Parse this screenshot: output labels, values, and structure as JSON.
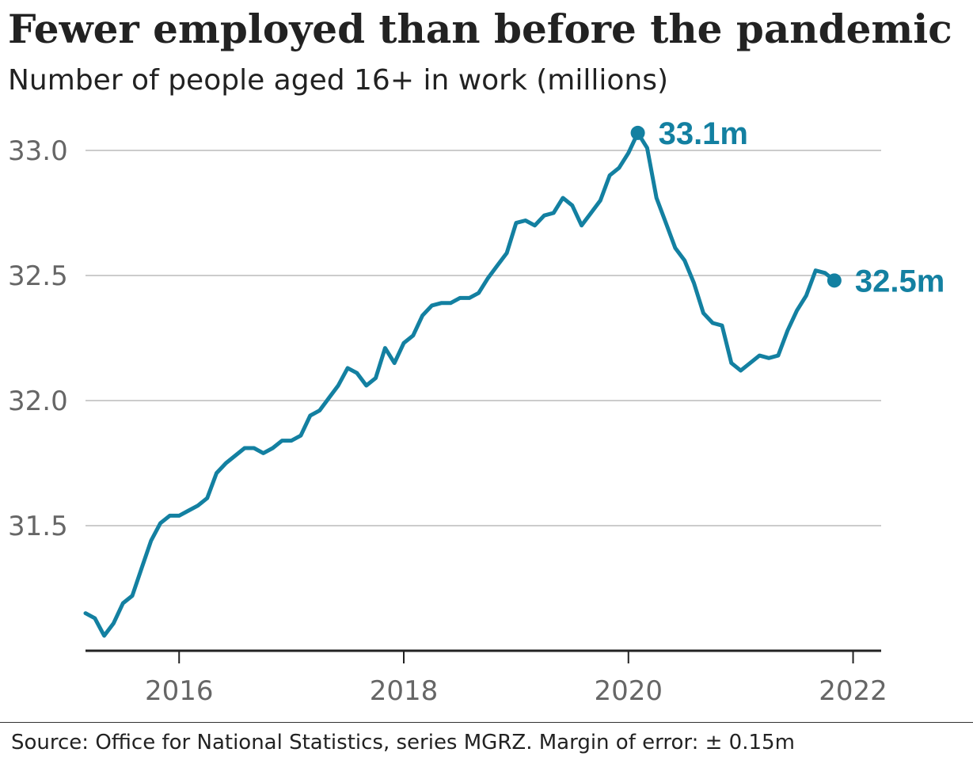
{
  "title": "Fewer employed than before the pandemic",
  "subtitle": "Number of people aged 16+ in work (millions)",
  "source": "Source: Office for National Statistics, series MGRZ. Margin of error: ± 0.15m",
  "colors": {
    "line": "#1380a1",
    "grid": "#cccccc",
    "axis": "#222222",
    "tick_text": "#666666",
    "text": "#222222"
  },
  "chart_data": {
    "type": "line",
    "title": "Fewer employed than before the pandemic",
    "subtitle": "Number of people aged 16+ in work (millions)",
    "xlabel": "",
    "ylabel": "",
    "xlim": [
      "2015-03",
      "2022-04"
    ],
    "ylim": [
      31.0,
      33.1
    ],
    "y_ticks": [
      31.5,
      32.0,
      32.5,
      33.0
    ],
    "y_tick_labels": [
      "31.5",
      "32.0",
      "32.5",
      "33.0"
    ],
    "x_ticks": [
      "2016-01",
      "2018-01",
      "2020-01",
      "2022-01"
    ],
    "x_tick_labels": [
      "2016",
      "2018",
      "2020",
      "2022"
    ],
    "grid": "horizontal",
    "series": [
      {
        "name": "",
        "x": [
          "2015-03",
          "2015-04",
          "2015-05",
          "2015-06",
          "2015-07",
          "2015-08",
          "2015-09",
          "2015-10",
          "2015-11",
          "2015-12",
          "2016-01",
          "2016-02",
          "2016-03",
          "2016-04",
          "2016-05",
          "2016-06",
          "2016-07",
          "2016-08",
          "2016-09",
          "2016-10",
          "2016-11",
          "2016-12",
          "2017-01",
          "2017-02",
          "2017-03",
          "2017-04",
          "2017-05",
          "2017-06",
          "2017-07",
          "2017-08",
          "2017-09",
          "2017-10",
          "2017-11",
          "2017-12",
          "2018-01",
          "2018-02",
          "2018-03",
          "2018-04",
          "2018-05",
          "2018-06",
          "2018-07",
          "2018-08",
          "2018-09",
          "2018-10",
          "2018-11",
          "2018-12",
          "2019-01",
          "2019-02",
          "2019-03",
          "2019-04",
          "2019-05",
          "2019-06",
          "2019-07",
          "2019-08",
          "2019-09",
          "2019-10",
          "2019-11",
          "2019-12",
          "2020-01",
          "2020-02",
          "2020-03",
          "2020-04",
          "2020-05",
          "2020-06",
          "2020-07",
          "2020-08",
          "2020-09",
          "2020-10",
          "2020-11",
          "2020-12",
          "2021-01",
          "2021-02",
          "2021-03",
          "2021-04",
          "2021-05",
          "2021-06",
          "2021-07",
          "2021-08",
          "2021-09",
          "2021-10",
          "2021-11"
        ],
        "values": [
          31.15,
          31.13,
          31.06,
          31.11,
          31.19,
          31.22,
          31.33,
          31.44,
          31.51,
          31.54,
          31.54,
          31.56,
          31.58,
          31.61,
          31.71,
          31.75,
          31.78,
          31.81,
          31.81,
          31.79,
          31.81,
          31.84,
          31.84,
          31.86,
          31.94,
          31.96,
          32.01,
          32.06,
          32.13,
          32.11,
          32.06,
          32.09,
          32.21,
          32.15,
          32.23,
          32.26,
          32.34,
          32.38,
          32.39,
          32.39,
          32.41,
          32.41,
          32.43,
          32.49,
          32.54,
          32.59,
          32.71,
          32.72,
          32.7,
          32.74,
          32.75,
          32.81,
          32.78,
          32.7,
          32.75,
          32.8,
          32.9,
          32.93,
          32.99,
          33.07,
          33.01,
          32.81,
          32.71,
          32.61,
          32.56,
          32.47,
          32.35,
          32.31,
          32.3,
          32.15,
          32.12,
          32.15,
          32.18,
          32.17,
          32.18,
          32.28,
          32.36,
          32.42,
          32.52,
          32.51,
          32.48
        ]
      }
    ],
    "annotations": [
      {
        "x": "2020-02",
        "y": 33.07,
        "label": "33.1m"
      },
      {
        "x": "2021-11",
        "y": 32.48,
        "label": "32.5m"
      }
    ]
  }
}
